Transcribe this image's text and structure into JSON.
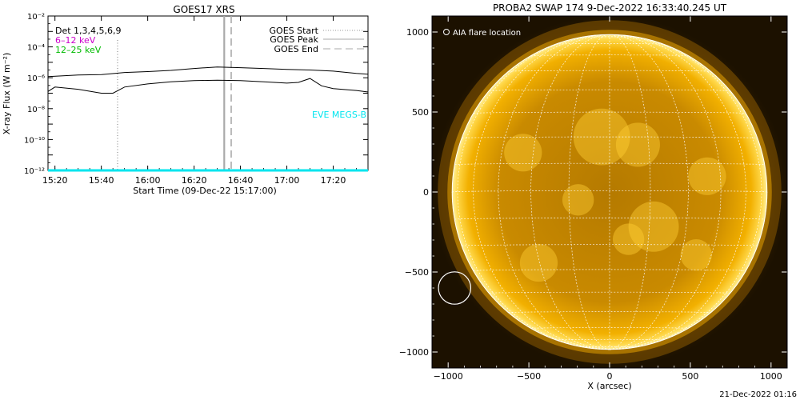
{
  "left_panel": {
    "title": "GOES17 XRS",
    "ylabel": "X-ray Flux (W m⁻²)",
    "xlabel": "Start Time (09-Dec-22 15:17:00)",
    "labels": {
      "det": "Det 1,3,4,5,6,9",
      "band1": "6–12 keV",
      "band2": "12–25 keV",
      "eve": "EVE MEGS-B"
    },
    "legend": {
      "start": "GOES Start",
      "peak": "GOES Peak",
      "end": "GOES End"
    },
    "colors": {
      "band1": "#cc00cc",
      "band2": "#00bb00",
      "eve": "#00e5ee",
      "start_line": "#999999",
      "peak_line": "#aaaaaa",
      "end_line": "#aaaaaa"
    }
  },
  "right_panel": {
    "title": "PROBA2 SWAP 174  9-Dec-2022 16:33:40.245 UT",
    "xlabel": "X (arcsec)",
    "legend": "AIA flare location",
    "flare_location": {
      "x": -960,
      "y": -600,
      "r": 100
    },
    "solar_radius_arcsec": 975,
    "colors": {
      "sun": "#f2b000",
      "grid": "#ffffff"
    }
  },
  "footer_timestamp": "21-Dec-2022 01:16",
  "chart_data": [
    {
      "type": "line",
      "title": "GOES17 XRS",
      "xlabel": "Start Time (09-Dec-22 15:17:00)",
      "ylabel": "X-ray Flux (W m⁻²)",
      "yscale": "log",
      "xlim": [
        "15:17",
        "17:35"
      ],
      "ylim": [
        1e-12,
        0.01
      ],
      "x_ticks": [
        "15:20",
        "15:40",
        "16:00",
        "16:20",
        "16:40",
        "17:00",
        "17:20"
      ],
      "y_ticks": [
        "10⁻¹²",
        "10⁻¹⁰",
        "10⁻⁸",
        "10⁻⁶",
        "10⁻⁴",
        "10⁻²"
      ],
      "event_times": {
        "start": "15:47",
        "peak": "16:33",
        "end": "16:36"
      },
      "series": [
        {
          "name": "",
          "x": [
            "15:17",
            "15:30",
            "15:40",
            "15:50",
            "16:00",
            "16:10",
            "16:20",
            "16:30",
            "16:40",
            "16:50",
            "17:00",
            "17:10",
            "17:20",
            "17:30",
            "17:35"
          ],
          "values": [
            1.2e-06,
            1.5e-06,
            1.6e-06,
            2.2e-06,
            2.5e-06,
            3e-06,
            4e-06,
            5e-06,
            4.5e-06,
            4e-06,
            3.5e-06,
            3.2e-06,
            2.7e-06,
            1.9e-06,
            1.7e-06
          ]
        },
        {
          "name": "",
          "x": [
            "15:17",
            "15:20",
            "15:30",
            "15:40",
            "15:45",
            "15:50",
            "16:00",
            "16:10",
            "16:20",
            "16:30",
            "16:40",
            "16:50",
            "17:00",
            "17:05",
            "17:10",
            "17:15",
            "17:20",
            "17:30",
            "17:35"
          ],
          "values": [
            1.3e-07,
            2.5e-07,
            1.8e-07,
            1e-07,
            1e-07,
            2.5e-07,
            4e-07,
            5.5e-07,
            6.5e-07,
            7e-07,
            6.5e-07,
            5.5e-07,
            4.5e-07,
            5e-07,
            9e-07,
            3e-07,
            2e-07,
            1.5e-07,
            1.2e-07
          ]
        },
        {
          "name": "",
          "x": [
            "15:17",
            "17:35"
          ],
          "values": [
            1e-12,
            1e-12
          ]
        }
      ]
    },
    {
      "type": "scatter",
      "title": "PROBA2 SWAP 174  9-Dec-2022 16:33:40.245 UT",
      "xlabel": "X (arcsec)",
      "ylabel": "",
      "xlim": [
        -1100,
        1100
      ],
      "ylim": [
        -1100,
        1100
      ],
      "x_ticks": [
        -1000,
        -500,
        0,
        500,
        1000
      ],
      "y_ticks": [
        -1000,
        -500,
        0,
        500,
        1000
      ],
      "grid": true
    }
  ]
}
